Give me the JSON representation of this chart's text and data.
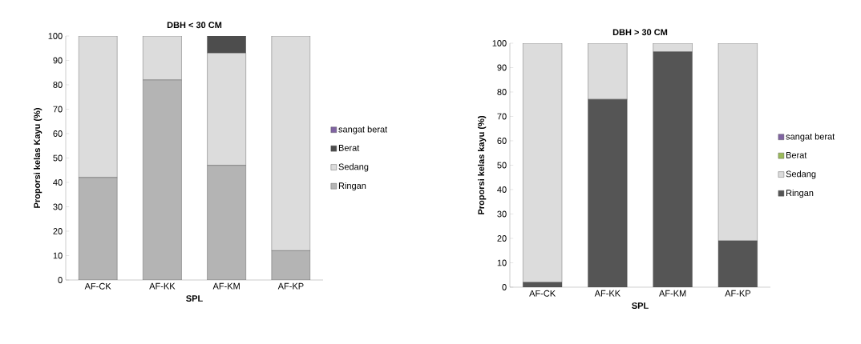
{
  "chart_data": [
    {
      "type": "bar",
      "title": "DBH < 30 CM",
      "xlabel": "SPL",
      "ylabel": "Proporsi kelas Kayu (%)",
      "categories": [
        "AF-CK",
        "AF-KK",
        "AF-KM",
        "AF-KP"
      ],
      "stacked": true,
      "ylim": [
        0,
        100
      ],
      "yticks": [
        0,
        10,
        20,
        30,
        40,
        50,
        60,
        70,
        80,
        90,
        100
      ],
      "legend": "right",
      "grid": false,
      "series": [
        {
          "name": "Ringan",
          "color": "#b4b4b4",
          "values": [
            42,
            82,
            47,
            12
          ]
        },
        {
          "name": "Sedang",
          "color": "#dcdcdc",
          "values": [
            58,
            18,
            46,
            88
          ]
        },
        {
          "name": "Berat",
          "color": "#4d4d4d",
          "values": [
            0,
            0,
            7,
            0
          ]
        },
        {
          "name": "sangat berat",
          "color": "#8064a2",
          "values": [
            0,
            0,
            0,
            0
          ]
        }
      ]
    },
    {
      "type": "bar",
      "title": "DBH > 30 CM",
      "xlabel": "SPL",
      "ylabel": "Proporsi kelas kayu (%)",
      "categories": [
        "AF-CK",
        "AF-KK",
        "AF-KM",
        "AF-KP"
      ],
      "stacked": true,
      "ylim": [
        0,
        100
      ],
      "yticks": [
        0,
        10,
        20,
        30,
        40,
        50,
        60,
        70,
        80,
        90,
        100
      ],
      "legend": "right",
      "grid": false,
      "series": [
        {
          "name": "Ringan",
          "color": "#555555",
          "values": [
            2,
            77,
            96.5,
            19
          ]
        },
        {
          "name": "Sedang",
          "color": "#dcdcdc",
          "values": [
            98,
            23,
            3.5,
            81
          ]
        },
        {
          "name": "Berat",
          "color": "#9bbb59",
          "values": [
            0,
            0,
            0,
            0
          ]
        },
        {
          "name": "sangat berat",
          "color": "#8064a2",
          "values": [
            0,
            0,
            0,
            0
          ]
        }
      ]
    }
  ]
}
